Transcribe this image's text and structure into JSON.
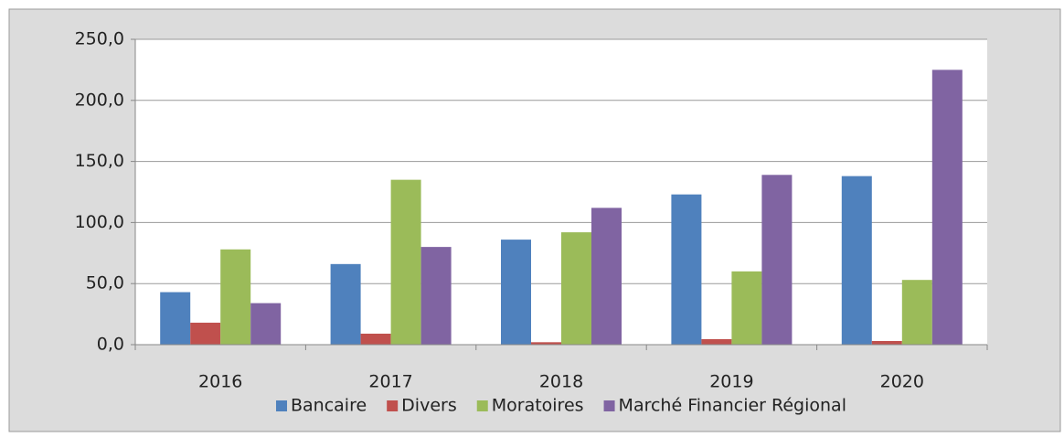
{
  "chart_data": {
    "type": "bar",
    "categories": [
      "2016",
      "2017",
      "2018",
      "2019",
      "2020"
    ],
    "series": [
      {
        "name": "Bancaire",
        "color": "#4f81bd",
        "values": [
          43,
          66,
          86,
          123,
          138
        ]
      },
      {
        "name": "Divers",
        "color": "#c0504d",
        "values": [
          18,
          9,
          2,
          4.5,
          3
        ]
      },
      {
        "name": "Moratoires",
        "color": "#9bbb59",
        "values": [
          78,
          135,
          92,
          60,
          53
        ]
      },
      {
        "name": "Marché Financier Régional",
        "color": "#8064a2",
        "values": [
          34,
          80,
          112,
          139,
          225
        ]
      }
    ],
    "ylim": [
      0,
      250
    ],
    "yticks": [
      {
        "value": 0,
        "label": "0,0"
      },
      {
        "value": 50,
        "label": "50,0"
      },
      {
        "value": 100,
        "label": "100,0"
      },
      {
        "value": 150,
        "label": "150,0"
      },
      {
        "value": 200,
        "label": "200,0"
      },
      {
        "value": 250,
        "label": "250,0"
      }
    ],
    "grid": true,
    "legend": "bottom"
  }
}
